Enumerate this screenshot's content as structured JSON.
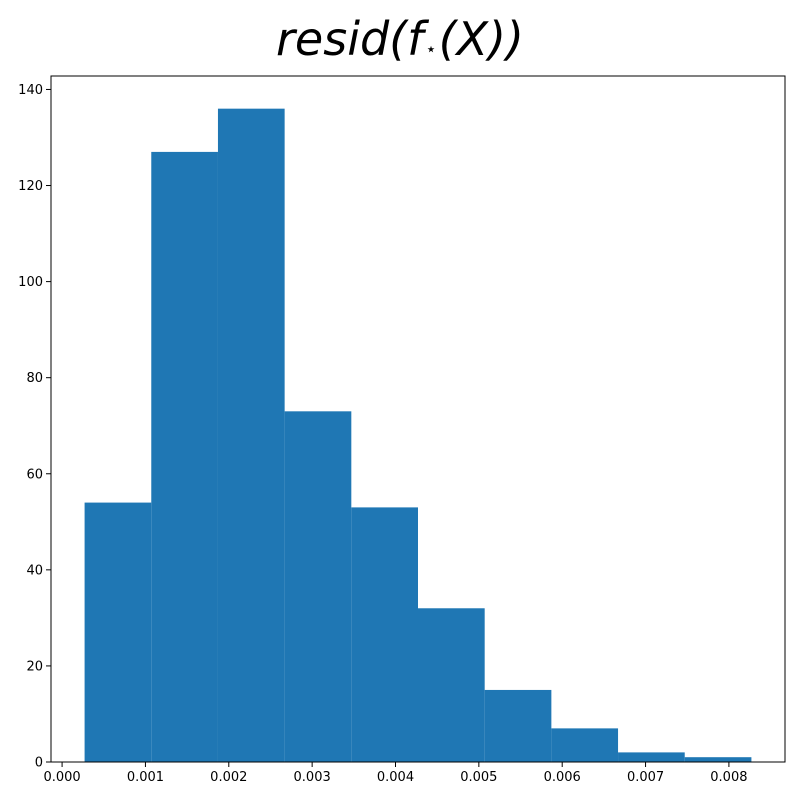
{
  "chart_data": {
    "type": "bar",
    "title": {
      "pre": "resid(f",
      "subscript": "⋆",
      "post": "(X))"
    },
    "xlabel": "",
    "ylabel": "",
    "bin_edges": [
      0.00027,
      0.00107,
      0.00187,
      0.00267,
      0.00347,
      0.00427,
      0.00507,
      0.00587,
      0.00667,
      0.00747,
      0.00827
    ],
    "values": [
      54,
      127,
      136,
      73,
      53,
      32,
      15,
      7,
      2,
      1
    ],
    "xlim": [
      -0.000133,
      0.008673
    ],
    "ylim": [
      0,
      142.8
    ],
    "xticks": [
      0.0,
      0.001,
      0.002,
      0.003,
      0.004,
      0.005,
      0.006,
      0.007,
      0.008
    ],
    "xtick_labels": [
      "0.000",
      "0.001",
      "0.002",
      "0.003",
      "0.004",
      "0.005",
      "0.006",
      "0.007",
      "0.008"
    ],
    "yticks": [
      0,
      20,
      40,
      60,
      80,
      100,
      120,
      140
    ],
    "ytick_labels": [
      "0",
      "20",
      "40",
      "60",
      "80",
      "100",
      "120",
      "140"
    ],
    "grid": false,
    "legend": "none",
    "bar_color": "#1f77b4"
  }
}
